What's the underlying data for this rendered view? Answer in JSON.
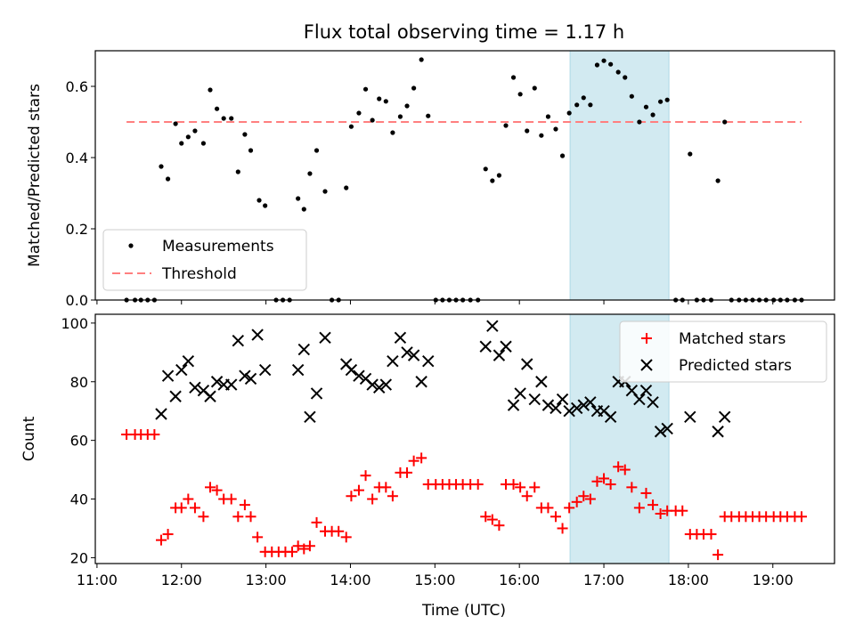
{
  "chart_data": {
    "type": "scatter",
    "title": "Flux total observing time = 1.17 h",
    "xlabel": "Time (UTC)",
    "xlim_hours": [
      10.98,
      19.73
    ],
    "xticks": [
      "11:00",
      "12:00",
      "13:00",
      "14:00",
      "15:00",
      "16:00",
      "17:00",
      "18:00",
      "19:00"
    ],
    "highlight_span_hours": [
      16.6,
      17.77
    ],
    "highlight_color": "#add8e6",
    "top": {
      "ylabel": "Matched/Predicted stars",
      "ylim": [
        0,
        0.7
      ],
      "yticks": [
        "0.0",
        "0.2",
        "0.4",
        "0.6"
      ],
      "threshold": 0.5,
      "threshold_color": "#ff7f7f",
      "legend": [
        "Measurements",
        "Threshold"
      ],
      "legend_position": "lower-left",
      "measurements": [
        [
          11.35,
          0
        ],
        [
          11.45,
          0
        ],
        [
          11.52,
          0
        ],
        [
          11.6,
          0
        ],
        [
          11.68,
          0
        ],
        [
          11.76,
          0.375
        ],
        [
          11.84,
          0.34
        ],
        [
          11.93,
          0.495
        ],
        [
          12.0,
          0.44
        ],
        [
          12.08,
          0.458
        ],
        [
          12.16,
          0.475
        ],
        [
          12.26,
          0.44
        ],
        [
          12.34,
          0.59
        ],
        [
          12.42,
          0.537
        ],
        [
          12.5,
          0.51
        ],
        [
          12.59,
          0.51
        ],
        [
          12.67,
          0.36
        ],
        [
          12.75,
          0.465
        ],
        [
          12.82,
          0.42
        ],
        [
          12.92,
          0.28
        ],
        [
          12.99,
          0.265
        ],
        [
          13.12,
          0
        ],
        [
          13.2,
          0
        ],
        [
          13.28,
          0
        ],
        [
          13.38,
          0.285
        ],
        [
          13.45,
          0.255
        ],
        [
          13.52,
          0.355
        ],
        [
          13.6,
          0.42
        ],
        [
          13.7,
          0.305
        ],
        [
          13.78,
          0
        ],
        [
          13.86,
          0
        ],
        [
          13.95,
          0.315
        ],
        [
          14.01,
          0.487
        ],
        [
          14.1,
          0.525
        ],
        [
          14.18,
          0.592
        ],
        [
          14.26,
          0.505
        ],
        [
          14.34,
          0.565
        ],
        [
          14.42,
          0.558
        ],
        [
          14.5,
          0.47
        ],
        [
          14.59,
          0.515
        ],
        [
          14.67,
          0.545
        ],
        [
          14.75,
          0.595
        ],
        [
          14.84,
          0.675
        ],
        [
          14.92,
          0.517
        ],
        [
          15.01,
          0
        ],
        [
          15.09,
          0
        ],
        [
          15.17,
          0
        ],
        [
          15.25,
          0
        ],
        [
          15.33,
          0
        ],
        [
          15.42,
          0
        ],
        [
          15.51,
          0
        ],
        [
          15.6,
          0.368
        ],
        [
          15.68,
          0.335
        ],
        [
          15.76,
          0.35
        ],
        [
          15.84,
          0.49
        ],
        [
          15.93,
          0.625
        ],
        [
          16.01,
          0.578
        ],
        [
          16.09,
          0.475
        ],
        [
          16.18,
          0.595
        ],
        [
          16.26,
          0.462
        ],
        [
          16.34,
          0.515
        ],
        [
          16.43,
          0.48
        ],
        [
          16.51,
          0.405
        ],
        [
          16.59,
          0.525
        ],
        [
          16.68,
          0.548
        ],
        [
          16.76,
          0.568
        ],
        [
          16.84,
          0.548
        ],
        [
          16.92,
          0.66
        ],
        [
          17.0,
          0.672
        ],
        [
          17.08,
          0.662
        ],
        [
          17.17,
          0.64
        ],
        [
          17.25,
          0.625
        ],
        [
          17.33,
          0.572
        ],
        [
          17.42,
          0.5
        ],
        [
          17.5,
          0.542
        ],
        [
          17.58,
          0.52
        ],
        [
          17.67,
          0.557
        ],
        [
          17.75,
          0.562
        ],
        [
          17.85,
          0
        ],
        [
          17.93,
          0
        ],
        [
          18.02,
          0.41
        ],
        [
          18.1,
          0
        ],
        [
          18.18,
          0
        ],
        [
          18.27,
          0
        ],
        [
          18.35,
          0.335
        ],
        [
          18.43,
          0.5
        ],
        [
          18.51,
          0
        ],
        [
          18.6,
          0
        ],
        [
          18.68,
          0
        ],
        [
          18.76,
          0
        ],
        [
          18.84,
          0
        ],
        [
          18.92,
          0
        ],
        [
          19.01,
          0
        ],
        [
          19.09,
          0
        ],
        [
          19.17,
          0
        ],
        [
          19.26,
          0
        ],
        [
          19.34,
          0
        ]
      ]
    },
    "bottom": {
      "ylabel": "Count",
      "ylim": [
        18,
        103
      ],
      "yticks": [
        "20",
        "40",
        "60",
        "80",
        "100"
      ],
      "legend": [
        "Matched stars",
        "Predicted stars"
      ],
      "legend_position": "top-right",
      "matched_color": "#ff0000",
      "predicted_color": "#000000",
      "matched": [
        [
          11.35,
          62
        ],
        [
          11.45,
          62
        ],
        [
          11.52,
          62
        ],
        [
          11.6,
          62
        ],
        [
          11.68,
          62
        ],
        [
          11.76,
          26
        ],
        [
          11.84,
          28
        ],
        [
          11.93,
          37
        ],
        [
          12.0,
          37
        ],
        [
          12.08,
          40
        ],
        [
          12.16,
          37
        ],
        [
          12.26,
          34
        ],
        [
          12.34,
          44
        ],
        [
          12.42,
          43
        ],
        [
          12.5,
          40
        ],
        [
          12.59,
          40
        ],
        [
          12.67,
          34
        ],
        [
          12.75,
          38
        ],
        [
          12.82,
          34
        ],
        [
          12.9,
          27
        ],
        [
          12.99,
          22
        ],
        [
          13.07,
          22
        ],
        [
          13.15,
          22
        ],
        [
          13.23,
          22
        ],
        [
          13.31,
          22
        ],
        [
          13.38,
          24
        ],
        [
          13.45,
          23
        ],
        [
          13.52,
          24
        ],
        [
          13.6,
          32
        ],
        [
          13.7,
          29
        ],
        [
          13.78,
          29
        ],
        [
          13.86,
          29
        ],
        [
          13.95,
          27
        ],
        [
          14.01,
          41
        ],
        [
          14.1,
          43
        ],
        [
          14.18,
          48
        ],
        [
          14.26,
          40
        ],
        [
          14.34,
          44
        ],
        [
          14.42,
          44
        ],
        [
          14.5,
          41
        ],
        [
          14.59,
          49
        ],
        [
          14.67,
          49
        ],
        [
          14.75,
          53
        ],
        [
          14.84,
          54
        ],
        [
          14.92,
          45
        ],
        [
          15.01,
          45
        ],
        [
          15.09,
          45
        ],
        [
          15.17,
          45
        ],
        [
          15.25,
          45
        ],
        [
          15.33,
          45
        ],
        [
          15.42,
          45
        ],
        [
          15.51,
          45
        ],
        [
          15.6,
          34
        ],
        [
          15.68,
          33
        ],
        [
          15.76,
          31
        ],
        [
          15.84,
          45
        ],
        [
          15.93,
          45
        ],
        [
          16.01,
          44
        ],
        [
          16.09,
          41
        ],
        [
          16.18,
          44
        ],
        [
          16.26,
          37
        ],
        [
          16.34,
          37
        ],
        [
          16.43,
          34
        ],
        [
          16.51,
          30
        ],
        [
          16.59,
          37
        ],
        [
          16.68,
          39
        ],
        [
          16.76,
          41
        ],
        [
          16.84,
          40
        ],
        [
          16.92,
          46
        ],
        [
          17.0,
          47
        ],
        [
          17.08,
          45
        ],
        [
          17.17,
          51
        ],
        [
          17.25,
          50
        ],
        [
          17.33,
          44
        ],
        [
          17.42,
          37
        ],
        [
          17.5,
          42
        ],
        [
          17.58,
          38
        ],
        [
          17.67,
          35
        ],
        [
          17.75,
          36
        ],
        [
          17.85,
          36
        ],
        [
          17.93,
          36
        ],
        [
          18.02,
          28
        ],
        [
          18.1,
          28
        ],
        [
          18.18,
          28
        ],
        [
          18.27,
          28
        ],
        [
          18.35,
          21
        ],
        [
          18.43,
          34
        ],
        [
          18.51,
          34
        ],
        [
          18.6,
          34
        ],
        [
          18.68,
          34
        ],
        [
          18.76,
          34
        ],
        [
          18.84,
          34
        ],
        [
          18.92,
          34
        ],
        [
          19.01,
          34
        ],
        [
          19.09,
          34
        ],
        [
          19.17,
          34
        ],
        [
          19.26,
          34
        ],
        [
          19.34,
          34
        ]
      ],
      "predicted": [
        [
          11.76,
          69
        ],
        [
          11.84,
          82
        ],
        [
          11.93,
          75
        ],
        [
          12.0,
          84
        ],
        [
          12.08,
          87
        ],
        [
          12.16,
          78
        ],
        [
          12.26,
          77
        ],
        [
          12.34,
          75
        ],
        [
          12.42,
          80
        ],
        [
          12.5,
          79
        ],
        [
          12.59,
          79
        ],
        [
          12.67,
          94
        ],
        [
          12.75,
          82
        ],
        [
          12.82,
          81
        ],
        [
          12.9,
          96
        ],
        [
          12.99,
          84
        ],
        [
          13.38,
          84
        ],
        [
          13.45,
          91
        ],
        [
          13.52,
          68
        ],
        [
          13.6,
          76
        ],
        [
          13.7,
          95
        ],
        [
          13.95,
          86
        ],
        [
          14.01,
          84
        ],
        [
          14.1,
          82
        ],
        [
          14.18,
          81
        ],
        [
          14.26,
          79
        ],
        [
          14.34,
          78
        ],
        [
          14.42,
          79
        ],
        [
          14.5,
          87
        ],
        [
          14.59,
          95
        ],
        [
          14.67,
          90
        ],
        [
          14.75,
          89
        ],
        [
          14.84,
          80
        ],
        [
          14.92,
          87
        ],
        [
          15.6,
          92
        ],
        [
          15.68,
          99
        ],
        [
          15.76,
          89
        ],
        [
          15.84,
          92
        ],
        [
          15.93,
          72
        ],
        [
          16.01,
          76
        ],
        [
          16.09,
          86
        ],
        [
          16.18,
          74
        ],
        [
          16.26,
          80
        ],
        [
          16.34,
          72
        ],
        [
          16.43,
          71
        ],
        [
          16.51,
          74
        ],
        [
          16.59,
          70
        ],
        [
          16.68,
          71
        ],
        [
          16.76,
          72
        ],
        [
          16.84,
          73
        ],
        [
          16.92,
          70
        ],
        [
          17.0,
          70
        ],
        [
          17.08,
          68
        ],
        [
          17.17,
          80
        ],
        [
          17.25,
          80
        ],
        [
          17.33,
          77
        ],
        [
          17.42,
          74
        ],
        [
          17.5,
          77
        ],
        [
          17.58,
          73
        ],
        [
          17.67,
          63
        ],
        [
          17.75,
          64
        ],
        [
          18.02,
          68
        ],
        [
          18.35,
          63
        ],
        [
          18.43,
          68
        ]
      ]
    }
  }
}
